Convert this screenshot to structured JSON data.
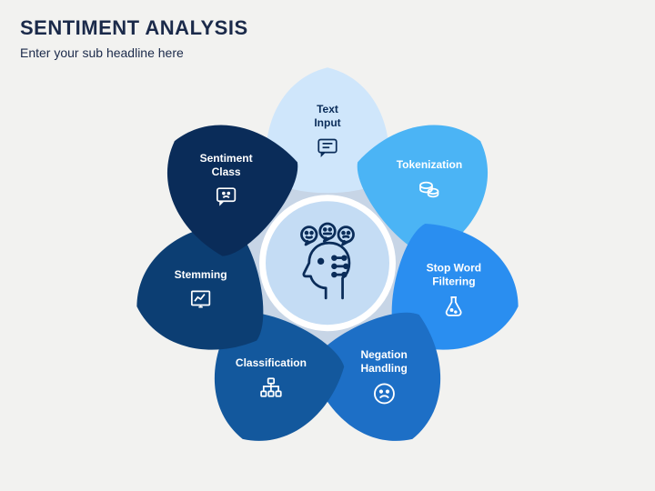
{
  "title": "SENTIMENT ANALYSIS",
  "subtitle": "Enter your sub headline here",
  "title_color": "#1b2a4a",
  "subtitle_color": "#1b2a4a",
  "background_color": "#f2f2f0",
  "diagram": {
    "type": "infographic",
    "ring_color": "#c7d5e6",
    "center_bg": "#c4dcf4",
    "center_border": "#ffffff",
    "center_icon_color": "#0a2c59",
    "petal_count": 7,
    "petals": [
      {
        "label": "Text\nInput",
        "fill": "#cfe6fb",
        "text_color": "#0a2c59",
        "icon_color": "#0a2c59",
        "icon": "chat-text"
      },
      {
        "label": "Tokenization",
        "fill": "#4bb4f5",
        "text_color": "#ffffff",
        "icon_color": "#ffffff",
        "icon": "coins"
      },
      {
        "label": "Stop Word\nFiltering",
        "fill": "#2a8ef0",
        "text_color": "#ffffff",
        "icon_color": "#ffffff",
        "icon": "flask"
      },
      {
        "label": "Negation\nHandling",
        "fill": "#1d6fc6",
        "text_color": "#ffffff",
        "icon_color": "#ffffff",
        "icon": "frown"
      },
      {
        "label": "Classification",
        "fill": "#13589d",
        "text_color": "#ffffff",
        "icon_color": "#ffffff",
        "icon": "tree"
      },
      {
        "label": "Stemming",
        "fill": "#0c3e73",
        "text_color": "#ffffff",
        "icon_color": "#ffffff",
        "icon": "chart"
      },
      {
        "label": "Sentiment\nClass",
        "fill": "#0a2c59",
        "text_color": "#ffffff",
        "icon_color": "#ffffff",
        "icon": "chat-frown"
      }
    ]
  }
}
